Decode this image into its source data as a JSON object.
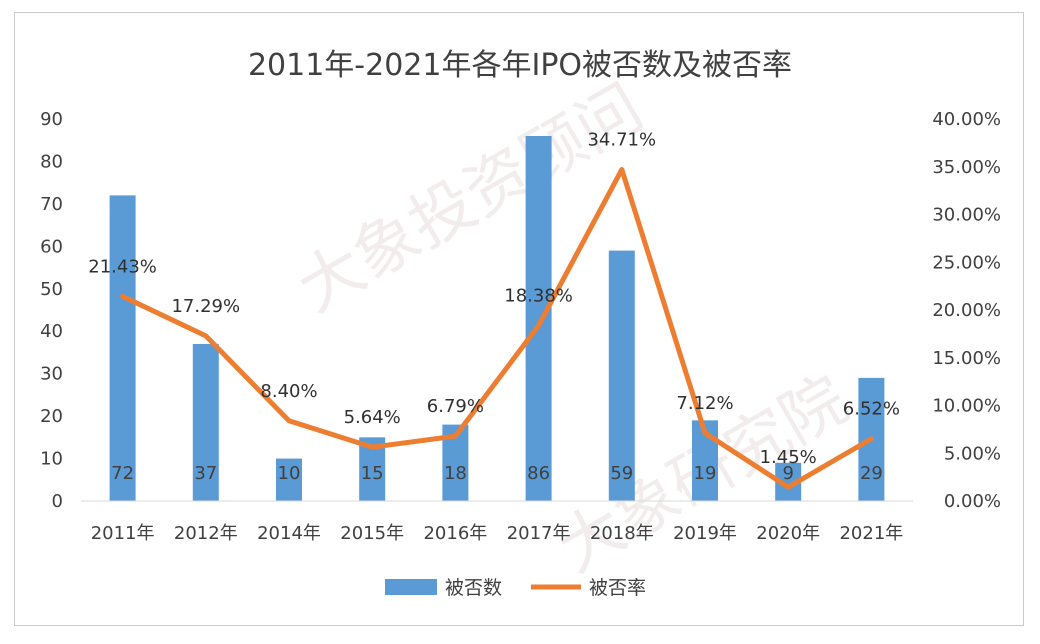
{
  "chart_data": {
    "type": "bar+line",
    "title": "2011年-2021年各年IPO被否数及被否率",
    "categories": [
      "2011年",
      "2012年",
      "2014年",
      "2015年",
      "2016年",
      "2017年",
      "2018年",
      "2019年",
      "2020年",
      "2021年"
    ],
    "series": [
      {
        "name": "被否数",
        "type": "bar",
        "axis": "left",
        "color": "#5b9bd5",
        "values": [
          72,
          37,
          10,
          15,
          18,
          86,
          59,
          19,
          9,
          29
        ],
        "labels": [
          "72",
          "37",
          "10",
          "15",
          "18",
          "86",
          "59",
          "19",
          "9",
          "29"
        ]
      },
      {
        "name": "被否率",
        "type": "line",
        "axis": "right",
        "color": "#ed7d31",
        "values": [
          21.43,
          17.29,
          8.4,
          5.64,
          6.79,
          18.38,
          34.71,
          7.12,
          1.45,
          6.52
        ],
        "labels": [
          "21.43%",
          "17.29%",
          "8.40%",
          "5.64%",
          "6.79%",
          "18.38%",
          "34.71%",
          "7.12%",
          "1.45%",
          "6.52%"
        ]
      }
    ],
    "y_left": {
      "ylim": [
        0,
        90
      ],
      "ticks": [
        "0",
        "10",
        "20",
        "30",
        "40",
        "50",
        "60",
        "70",
        "80",
        "90"
      ]
    },
    "y_right": {
      "ylim": [
        0,
        40
      ],
      "ticks": [
        "0.00%",
        "5.00%",
        "10.00%",
        "15.00%",
        "20.00%",
        "25.00%",
        "30.00%",
        "35.00%",
        "40.00%"
      ]
    },
    "grid": false,
    "legend": "bottom"
  },
  "watermarks": [
    "大象投资顾问",
    "大象研究院"
  ]
}
